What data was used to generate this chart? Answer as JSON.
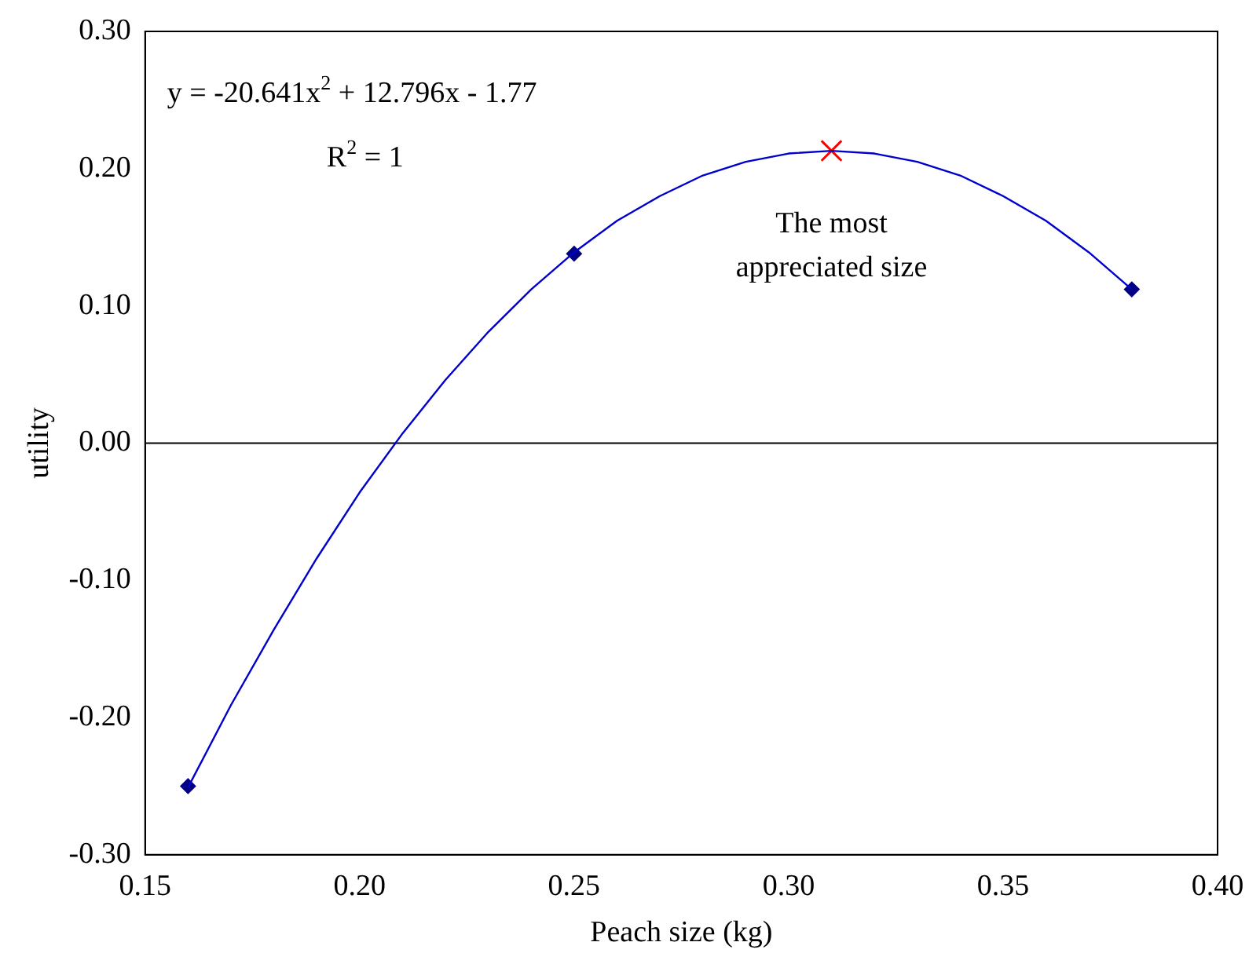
{
  "chart_data": {
    "type": "scatter",
    "xlabel": "Peach size (kg)",
    "ylabel": "utility",
    "xlim": [
      0.15,
      0.4
    ],
    "xticks": [
      {
        "value": 0.15,
        "label": "0.15"
      },
      {
        "value": 0.2,
        "label": "0.20"
      },
      {
        "value": 0.25,
        "label": "0.25"
      },
      {
        "value": 0.3,
        "label": "0.30"
      },
      {
        "value": 0.35,
        "label": "0.35"
      },
      {
        "value": 0.4,
        "label": "0.40"
      }
    ],
    "ylim": [
      -0.3,
      0.3
    ],
    "yticks": [
      {
        "value": -0.3,
        "label": "-0.30"
      },
      {
        "value": -0.2,
        "label": "-0.20"
      },
      {
        "value": -0.1,
        "label": "-0.10"
      },
      {
        "value": 0,
        "label": "0.00"
      },
      {
        "value": 0.1,
        "label": "0.10"
      },
      {
        "value": 0.2,
        "label": "0.20"
      },
      {
        "value": 0.3,
        "label": "0.30"
      }
    ],
    "grid": false,
    "legend": false,
    "ref_lines": [
      {
        "axis": "y",
        "value": 0,
        "color": "#000000"
      }
    ],
    "series": [
      {
        "type": "line",
        "color": "#0000cc",
        "marker": "none",
        "x": [
          0.16,
          0.17,
          0.18,
          0.19,
          0.2,
          0.21,
          0.22,
          0.23,
          0.24,
          0.25,
          0.26,
          0.27,
          0.28,
          0.29,
          0.3,
          0.31,
          0.32,
          0.33,
          0.34,
          0.35,
          0.36,
          0.37,
          0.38
        ],
        "values": [
          -0.251,
          -0.191,
          -0.136,
          -0.084,
          -0.036,
          0.007,
          0.046,
          0.081,
          0.112,
          0.139,
          0.162,
          0.18,
          0.195,
          0.205,
          0.211,
          0.213,
          0.211,
          0.205,
          0.195,
          0.18,
          0.162,
          0.139,
          0.112
        ]
      },
      {
        "color": "#000080",
        "marker": "diamond",
        "x": [
          0.16,
          0.25,
          0.38
        ],
        "values": [
          -0.25,
          0.138,
          0.112
        ]
      },
      {
        "color": "#ff0000",
        "marker": "cross",
        "x": [
          0.31
        ],
        "values": [
          0.213
        ]
      }
    ],
    "annotations": [
      "y = -20.641x$^{2}$ + 12.796x - 1.77",
      "R$^{2}$ = 1",
      {
        "text": "The most appreciated size",
        "x": 0.31,
        "y": 0.213
      }
    ]
  }
}
